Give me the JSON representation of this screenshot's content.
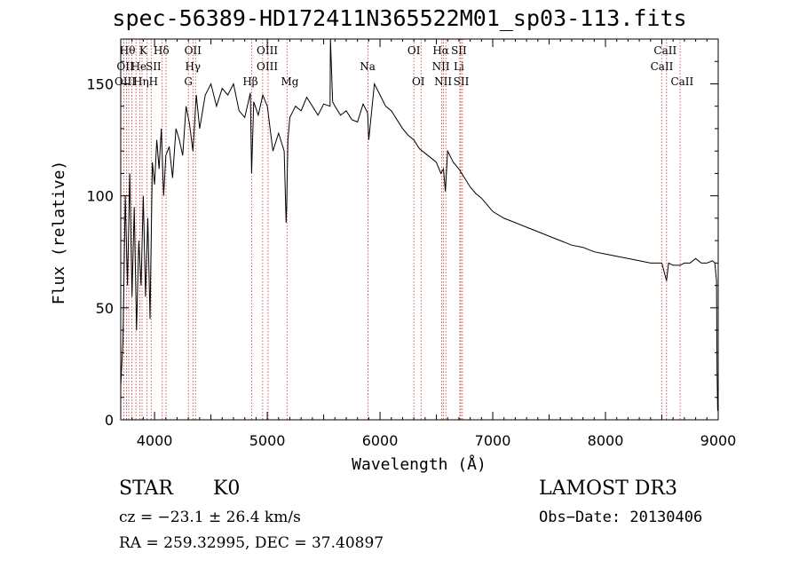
{
  "chart_data": {
    "type": "line",
    "title": "spec-56389-HD172411N365522M01_sp03-113.fits",
    "xlabel": "Wavelength (Å)",
    "ylabel": "Flux (relative)",
    "xlim": [
      3700,
      9000
    ],
    "ylim": [
      0,
      170
    ],
    "xticks": [
      4000,
      5000,
      6000,
      7000,
      8000,
      9000
    ],
    "yticks": [
      0,
      50,
      100,
      150
    ],
    "grid": false,
    "series": [
      {
        "name": "spectrum",
        "x": [
          3700,
          3720,
          3740,
          3760,
          3780,
          3800,
          3820,
          3840,
          3860,
          3880,
          3900,
          3920,
          3940,
          3960,
          3980,
          4000,
          4020,
          4040,
          4060,
          4080,
          4100,
          4130,
          4160,
          4190,
          4220,
          4250,
          4280,
          4310,
          4340,
          4370,
          4400,
          4450,
          4500,
          4550,
          4600,
          4650,
          4700,
          4750,
          4800,
          4850,
          4861,
          4880,
          4920,
          4960,
          5000,
          5050,
          5100,
          5150,
          5167,
          5172,
          5183,
          5200,
          5250,
          5300,
          5350,
          5400,
          5450,
          5500,
          5557,
          5560,
          5580,
          5600,
          5650,
          5700,
          5750,
          5800,
          5850,
          5890,
          5900,
          5950,
          6000,
          6050,
          6100,
          6150,
          6200,
          6250,
          6300,
          6350,
          6400,
          6450,
          6500,
          6540,
          6563,
          6580,
          6600,
          6650,
          6700,
          6750,
          6800,
          6850,
          6900,
          6950,
          7000,
          7100,
          7200,
          7300,
          7400,
          7500,
          7600,
          7700,
          7800,
          7900,
          8000,
          8100,
          8200,
          8300,
          8400,
          8500,
          8542,
          8560,
          8600,
          8662,
          8700,
          8750,
          8800,
          8850,
          8900,
          8950,
          8970,
          8985,
          8990,
          8995,
          9000
        ],
        "y": [
          15,
          35,
          100,
          60,
          110,
          55,
          95,
          40,
          80,
          60,
          100,
          55,
          90,
          45,
          115,
          105,
          125,
          112,
          130,
          100,
          118,
          122,
          108,
          130,
          125,
          118,
          140,
          132,
          120,
          145,
          130,
          145,
          150,
          140,
          148,
          145,
          150,
          138,
          135,
          146,
          110,
          142,
          136,
          145,
          140,
          120,
          128,
          120,
          88,
          95,
          125,
          135,
          140,
          138,
          144,
          140,
          136,
          141,
          140,
          170,
          142,
          140,
          136,
          138,
          134,
          133,
          141,
          137,
          125,
          150,
          145,
          140,
          138,
          134,
          130,
          127,
          125,
          121,
          119,
          117,
          115,
          110,
          112,
          102,
          120,
          115,
          112,
          108,
          104,
          101,
          99,
          96,
          93,
          90,
          88,
          86,
          84,
          82,
          80,
          78,
          77,
          75,
          74,
          73,
          72,
          71,
          70,
          70,
          62,
          70,
          69,
          69,
          70,
          70,
          72,
          70,
          70,
          71,
          70,
          62,
          22,
          4,
          6
        ]
      }
    ],
    "lines_top": [
      "Hθ",
      "K",
      "Hδ",
      "OII",
      "OIII",
      "OI",
      "Hα",
      "SII",
      "CaII"
    ],
    "lines_mid": [
      "OII",
      "He",
      "SII",
      "Hγ",
      "OIII",
      "Na",
      "NII",
      "Li",
      "CaII"
    ],
    "lines_low": [
      "OIII",
      "Hη",
      "H",
      "G",
      "Hβ",
      "Mg",
      "OI",
      "NII",
      "SII",
      "CaII"
    ],
    "line_wavelengths": [
      3727,
      3750,
      3771,
      3798,
      3835,
      3869,
      3889,
      3934,
      3970,
      4068,
      4102,
      4300,
      4340,
      4363,
      4861,
      4959,
      5007,
      5175,
      5893,
      6300,
      6364,
      6548,
      6563,
      6584,
      6708,
      6716,
      6731,
      8498,
      8542,
      8662
    ]
  },
  "info": {
    "object_class": "STAR",
    "object_subclass": "K0",
    "survey": "LAMOST DR3",
    "cz": "cz = −23.1 ± 26.4 km/s",
    "obs_date": "Obs−Date: 20130406",
    "radec": "RA = 259.32995, DEC =  37.40897"
  },
  "colors": {
    "line_marker": "#cc3333",
    "spectrum": "#000000",
    "axis": "#000000"
  }
}
